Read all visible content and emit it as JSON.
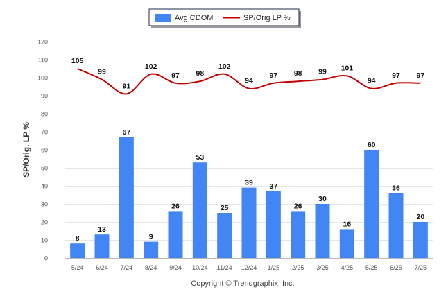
{
  "chart_data": {
    "type": "bar",
    "categories": [
      "5/24",
      "6/24",
      "7/24",
      "8/24",
      "9/24",
      "10/24",
      "11/24",
      "12/24",
      "1/25",
      "2/25",
      "3/25",
      "4/25",
      "5/25",
      "6/25",
      "7/25"
    ],
    "series": [
      {
        "name": "Avg CDOM",
        "type": "bar",
        "color": "#4285f4",
        "values": [
          8,
          13,
          67,
          9,
          26,
          53,
          25,
          39,
          37,
          26,
          30,
          16,
          60,
          36,
          20
        ]
      },
      {
        "name": "SP/Orig LP %",
        "type": "line",
        "color": "#c00000",
        "values": [
          105,
          99,
          91,
          102,
          97,
          98,
          102,
          94,
          97,
          98,
          99,
          101,
          94,
          97,
          97
        ]
      }
    ],
    "ylabel": "SP/Orig. LP %",
    "ylim": [
      0,
      120
    ],
    "yticks": [
      0,
      10,
      20,
      30,
      40,
      50,
      60,
      70,
      80,
      90,
      100,
      110,
      120
    ],
    "grid": true,
    "legend_position": "top-center",
    "data_labels": true
  },
  "footer": {
    "copyright": "Copyright © Trendgraphix, Inc."
  }
}
